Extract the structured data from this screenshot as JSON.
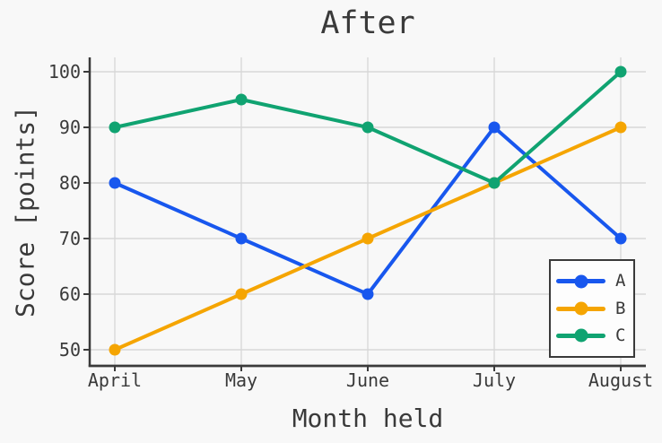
{
  "chart_data": {
    "type": "line",
    "title": "After",
    "xlabel": "Month held",
    "ylabel": "Score [points]",
    "categories": [
      "April",
      "May",
      "June",
      "July",
      "August"
    ],
    "series": [
      {
        "name": "A",
        "color": "#1857ee",
        "values": [
          80,
          70,
          60,
          90,
          70
        ]
      },
      {
        "name": "B",
        "color": "#f5a502",
        "values": [
          50,
          60,
          70,
          80,
          90
        ]
      },
      {
        "name": "C",
        "color": "#10a371",
        "values": [
          90,
          95,
          90,
          80,
          100
        ]
      }
    ],
    "yticks": [
      50,
      60,
      70,
      80,
      90,
      100
    ],
    "ylim": [
      47.5,
      102.5
    ],
    "grid": true,
    "legend_position": "lower right"
  },
  "colors": {
    "background": "#f8f8f8",
    "grid": "#d8d8d8",
    "axis": "#3a3a3a",
    "text": "#3a3a3a",
    "legend_background": "#fdfdfd"
  }
}
